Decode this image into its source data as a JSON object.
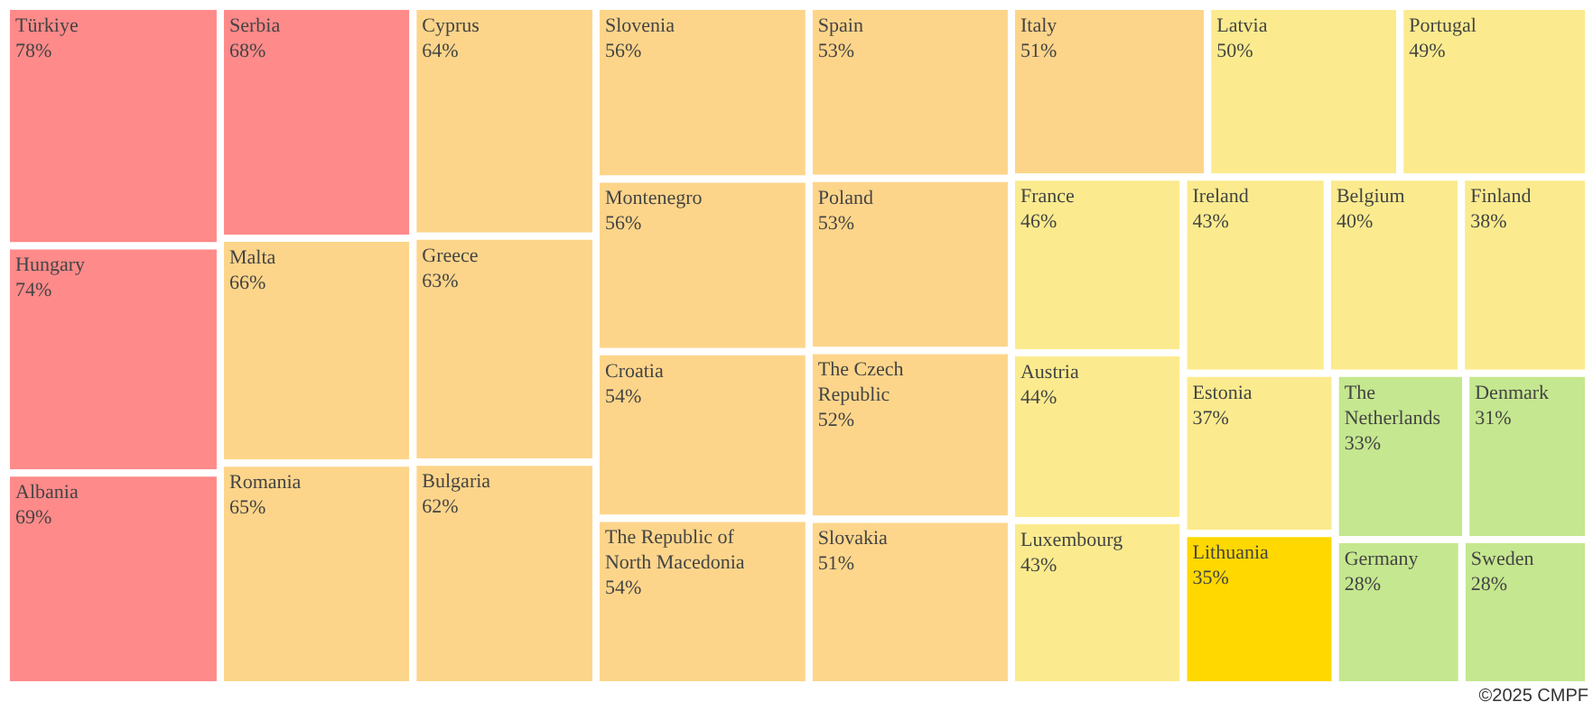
{
  "chart_data": {
    "type": "other",
    "categories": [
      "Türkiye",
      "Hungary",
      "Albania",
      "Serbia",
      "Malta",
      "Romania",
      "Cyprus",
      "Greece",
      "Bulgaria",
      "Slovenia",
      "Montenegro",
      "Croatia",
      "The Republic of North Macedonia",
      "Spain",
      "Poland",
      "The Czech Republic",
      "Slovakia",
      "Italy",
      "Latvia",
      "Portugal",
      "France",
      "Austria",
      "Luxembourg",
      "Ireland",
      "Belgium",
      "Finland",
      "Estonia",
      "Lithuania",
      "The Netherlands",
      "Denmark",
      "Germany",
      "Sweden"
    ],
    "values": [
      78,
      74,
      69,
      68,
      66,
      65,
      64,
      63,
      62,
      56,
      56,
      54,
      54,
      53,
      53,
      52,
      51,
      51,
      50,
      49,
      46,
      44,
      43,
      43,
      40,
      38,
      37,
      35,
      33,
      31,
      28,
      28
    ],
    "value_labels": [
      "78%",
      "74%",
      "69%",
      "68%",
      "66%",
      "65%",
      "64%",
      "63%",
      "62%",
      "56%",
      "56%",
      "54%",
      "54%",
      "53%",
      "53%",
      "52%",
      "51%",
      "51%",
      "50%",
      "49%",
      "46%",
      "44%",
      "43%",
      "43%",
      "40%",
      "38%",
      "37%",
      "35%",
      "33%",
      "31%",
      "28%",
      "28%"
    ],
    "colors": [
      "#ff8a8a",
      "#ff8a8a",
      "#ff8a8a",
      "#ff8a8a",
      "#fdd58a",
      "#fdd58a",
      "#fdd58a",
      "#fdd58a",
      "#fdd58a",
      "#fdd58a",
      "#fdd58a",
      "#fdd58a",
      "#fdd58a",
      "#fdd58a",
      "#fdd58a",
      "#fdd58a",
      "#fdd68c",
      "#fdd58a",
      "#fbeb8e",
      "#fbeb8e",
      "#fbeb8e",
      "#fbeb8e",
      "#fbeb8e",
      "#fbeb8e",
      "#fbeb8e",
      "#fbeb8e",
      "#fbeb8e",
      "#ffd800",
      "#c5e78f",
      "#c5e78f",
      "#c5e78f",
      "#c5e78f"
    ],
    "annotations": [
      "©2025 CMPF"
    ]
  }
}
